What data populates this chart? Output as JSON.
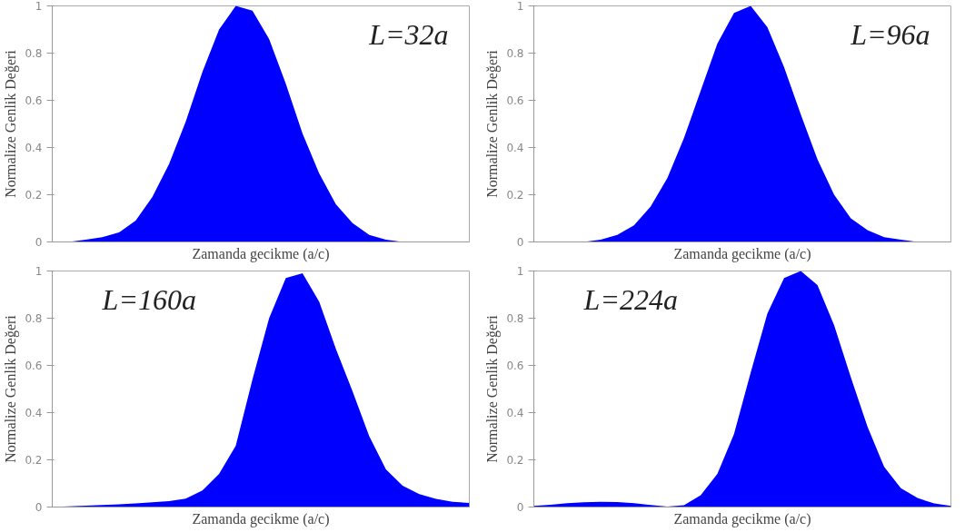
{
  "chart_data": [
    {
      "type": "area",
      "categories": [
        null,
        null,
        null,
        null,
        null,
        null,
        null,
        null,
        null,
        null,
        null,
        null,
        null,
        null,
        null,
        null,
        null,
        null,
        null,
        null,
        null,
        null,
        null,
        null,
        null,
        null
      ],
      "color": "#0000ff",
      "values": [
        0,
        0,
        0.01,
        0.02,
        0.04,
        0.09,
        0.19,
        0.33,
        0.51,
        0.72,
        0.9,
        1.0,
        0.98,
        0.86,
        0.67,
        0.46,
        0.29,
        0.16,
        0.08,
        0.03,
        0.01,
        0,
        0,
        0,
        0,
        0
      ],
      "ylim": [
        0,
        1
      ],
      "yticks": [
        0,
        0.2,
        0.4,
        0.6,
        0.8,
        1
      ],
      "xlabel": "Zamanda gecikme (a/c)",
      "ylabel": "Normalize Genlik Değeri",
      "annotations": [
        "L=32a"
      ],
      "tick_labels": "y"
    },
    {
      "type": "area",
      "categories": [
        null,
        null,
        null,
        null,
        null,
        null,
        null,
        null,
        null,
        null,
        null,
        null,
        null,
        null,
        null,
        null,
        null,
        null,
        null,
        null,
        null,
        null,
        null,
        null,
        null,
        null
      ],
      "color": "#0000ff",
      "values": [
        0,
        0,
        0,
        0,
        0.01,
        0.03,
        0.07,
        0.15,
        0.27,
        0.44,
        0.64,
        0.84,
        0.97,
        1.0,
        0.91,
        0.74,
        0.54,
        0.35,
        0.2,
        0.1,
        0.05,
        0.02,
        0.01,
        0,
        0,
        0
      ],
      "ylim": [
        0,
        1
      ],
      "yticks": [
        0,
        0.2,
        0.4,
        0.6,
        0.8,
        1
      ],
      "xlabel": "Zamanda gecikme (a/c)",
      "ylabel": "Normalize Genlik Değeri",
      "annotations": [
        "L=96a"
      ],
      "tick_labels": "y"
    },
    {
      "type": "area",
      "categories": [
        null,
        null,
        null,
        null,
        null,
        null,
        null,
        null,
        null,
        null,
        null,
        null,
        null,
        null,
        null,
        null,
        null,
        null,
        null,
        null,
        null,
        null,
        null,
        null,
        null,
        null
      ],
      "color": "#0000ff",
      "values": [
        0,
        0.003,
        0.006,
        0.009,
        0.012,
        0.015,
        0.02,
        0.025,
        0.036,
        0.07,
        0.14,
        0.26,
        0.54,
        0.8,
        0.97,
        0.99,
        0.87,
        0.67,
        0.49,
        0.3,
        0.16,
        0.09,
        0.055,
        0.035,
        0.022,
        0.017
      ],
      "ylim": [
        0,
        1
      ],
      "yticks": [
        0,
        0.2,
        0.4,
        0.6,
        0.8,
        1
      ],
      "xlabel": "Zamanda gecikme (a/c)",
      "ylabel": "Normalize Genlik Değeri",
      "annotations": [
        "L=160a"
      ],
      "tick_labels": "y"
    },
    {
      "type": "area",
      "categories": [
        null,
        null,
        null,
        null,
        null,
        null,
        null,
        null,
        null,
        null,
        null,
        null,
        null,
        null,
        null,
        null,
        null,
        null,
        null,
        null,
        null,
        null,
        null,
        null,
        null,
        null
      ],
      "color": "#0000ff",
      "values": [
        0.005,
        0.01,
        0.016,
        0.02,
        0.022,
        0.021,
        0.016,
        0.009,
        0.002,
        0.008,
        0.05,
        0.14,
        0.31,
        0.57,
        0.82,
        0.97,
        1.0,
        0.94,
        0.77,
        0.55,
        0.34,
        0.17,
        0.08,
        0.038,
        0.015,
        0.005
      ],
      "ylim": [
        0,
        1
      ],
      "yticks": [
        0,
        0.2,
        0.4,
        0.6,
        0.8,
        1
      ],
      "xlabel": "Zamanda gecikme (a/c)",
      "ylabel": "Normalize Genlik Değeri",
      "annotations": [
        "L=224a"
      ],
      "tick_labels": "y"
    }
  ]
}
